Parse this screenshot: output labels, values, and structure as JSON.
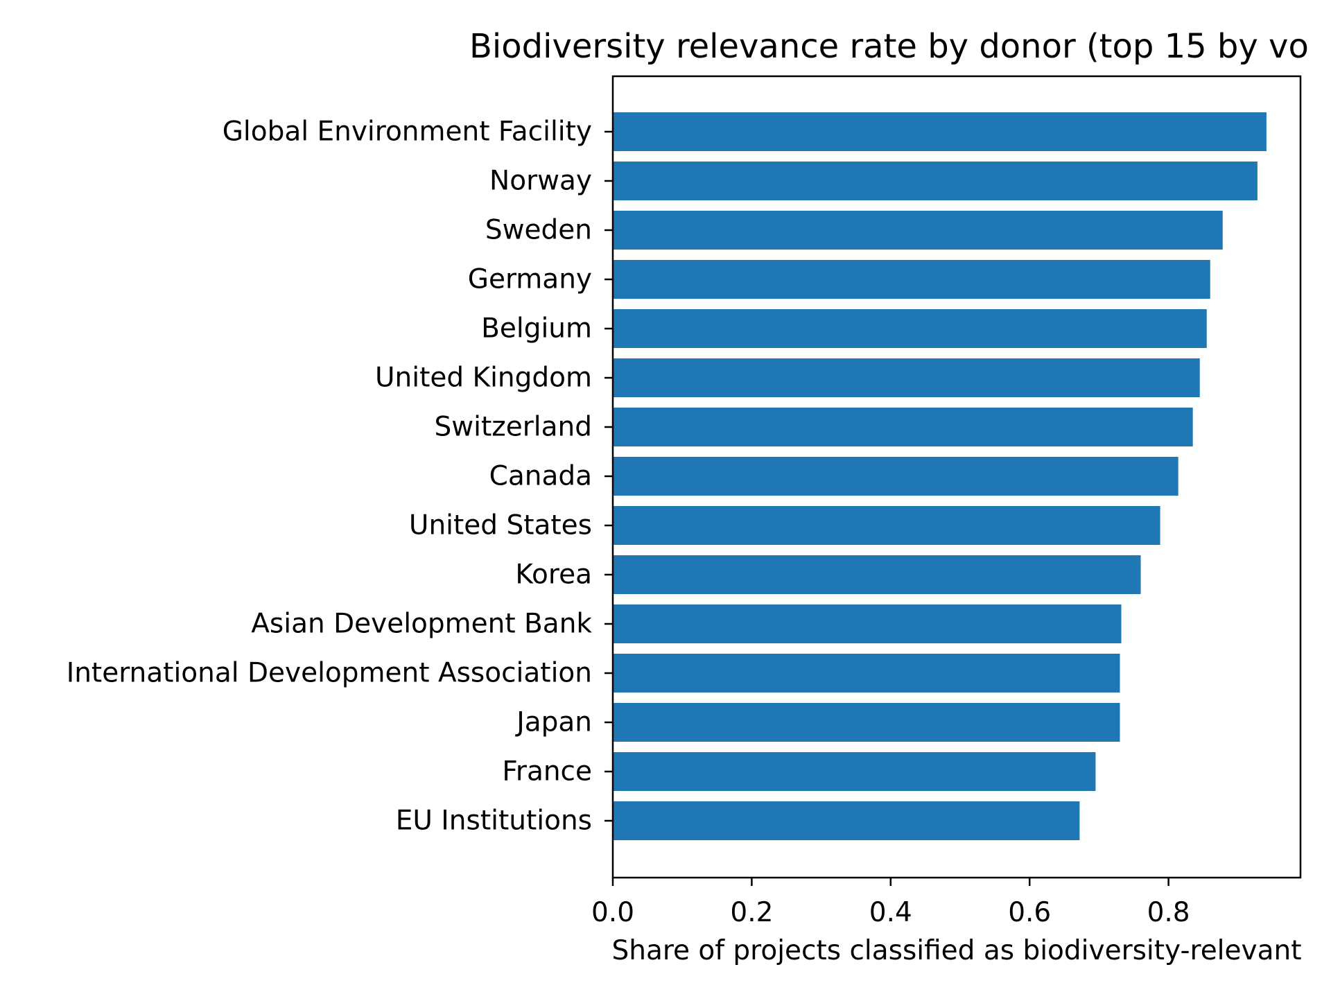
{
  "chart_data": {
    "type": "bar",
    "orientation": "horizontal",
    "title": "Biodiversity relevance rate by donor (top 15 by vo",
    "xlabel": "Share of projects classified as biodiversity-relevant",
    "ylabel": "",
    "xlim": [
      0,
      0.99
    ],
    "xticks": [
      "0.0",
      "0.2",
      "0.4",
      "0.6",
      "0.8"
    ],
    "grid": false,
    "bar_color": "#1f77b4",
    "categories": [
      "Global Environment Facility",
      "Norway",
      "Sweden",
      "Germany",
      "Belgium",
      "United Kingdom",
      "Switzerland",
      "Canada",
      "United States",
      "Korea",
      "Asian Development Bank",
      "International Development Association",
      "Japan",
      "France",
      "EU Institutions"
    ],
    "values": [
      0.941,
      0.928,
      0.878,
      0.86,
      0.855,
      0.845,
      0.835,
      0.814,
      0.788,
      0.76,
      0.732,
      0.73,
      0.73,
      0.695,
      0.672
    ]
  }
}
